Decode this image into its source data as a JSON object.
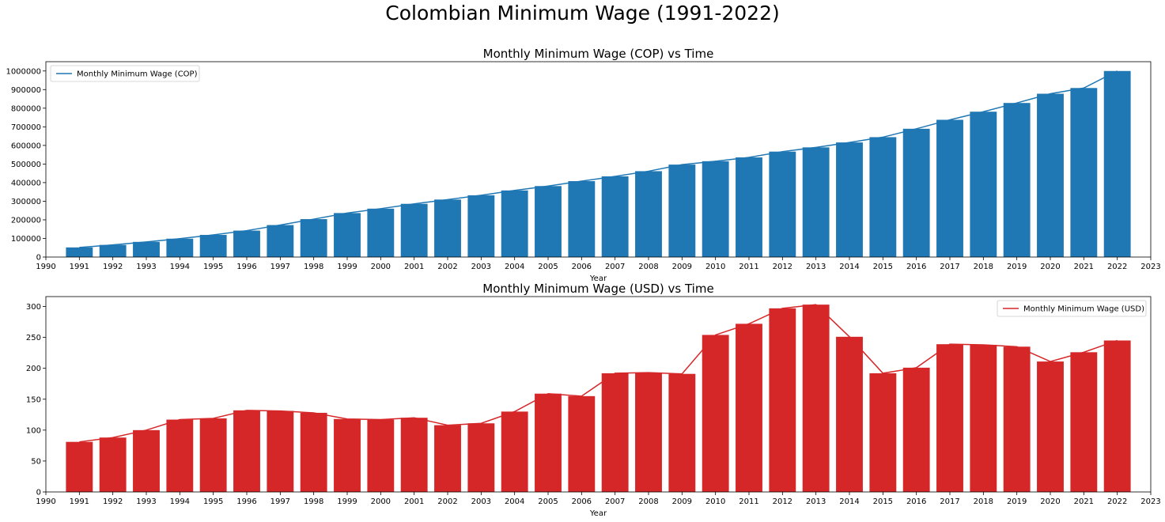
{
  "figure_title": "Colombian Minimum Wage (1991-2022)",
  "chart_data": [
    {
      "type": "bar",
      "title": "Monthly Minimum Wage (COP) vs Time",
      "xlabel": "Year",
      "ylabel": "",
      "xlim": [
        1990,
        2023
      ],
      "ylim": [
        0,
        1050000
      ],
      "x_ticks": [
        1990,
        1991,
        1992,
        1993,
        1994,
        1995,
        1996,
        1997,
        1998,
        1999,
        2000,
        2001,
        2002,
        2003,
        2004,
        2005,
        2006,
        2007,
        2008,
        2009,
        2010,
        2011,
        2012,
        2013,
        2014,
        2015,
        2016,
        2017,
        2018,
        2019,
        2020,
        2021,
        2022,
        2023
      ],
      "y_ticks": [
        0,
        100000,
        200000,
        300000,
        400000,
        500000,
        600000,
        700000,
        800000,
        900000,
        1000000
      ],
      "categories": [
        1991,
        1992,
        1993,
        1994,
        1995,
        1996,
        1997,
        1998,
        1999,
        2000,
        2001,
        2002,
        2003,
        2004,
        2005,
        2006,
        2007,
        2008,
        2009,
        2010,
        2011,
        2012,
        2013,
        2014,
        2015,
        2016,
        2017,
        2018,
        2019,
        2020,
        2021,
        2022
      ],
      "series": [
        {
          "name": "Monthly Minimum Wage (COP)",
          "kind": "bar+line",
          "color": "#1f77b4",
          "values": [
            51720,
            65190,
            81510,
            98700,
            118934,
            142125,
            172005,
            203826,
            236460,
            260100,
            286000,
            309000,
            332000,
            358000,
            381500,
            408000,
            433700,
            461500,
            496900,
            515000,
            535600,
            566700,
            589500,
            616000,
            644350,
            689455,
            737717,
            781242,
            828116,
            877803,
            908526,
            1000000
          ]
        }
      ],
      "legend": {
        "location": "top-left",
        "entries": [
          "Monthly Minimum Wage (COP)"
        ]
      },
      "grid": false
    },
    {
      "type": "bar",
      "title": "Monthly Minimum Wage (USD) vs Time",
      "xlabel": "Year",
      "ylabel": "",
      "xlim": [
        1990,
        2023
      ],
      "ylim": [
        0,
        316
      ],
      "x_ticks": [
        1990,
        1991,
        1992,
        1993,
        1994,
        1995,
        1996,
        1997,
        1998,
        1999,
        2000,
        2001,
        2002,
        2003,
        2004,
        2005,
        2006,
        2007,
        2008,
        2009,
        2010,
        2011,
        2012,
        2013,
        2014,
        2015,
        2016,
        2017,
        2018,
        2019,
        2020,
        2021,
        2022,
        2023
      ],
      "y_ticks": [
        0,
        50,
        100,
        150,
        200,
        250,
        300
      ],
      "categories": [
        1991,
        1992,
        1993,
        1994,
        1995,
        1996,
        1997,
        1998,
        1999,
        2000,
        2001,
        2002,
        2003,
        2004,
        2005,
        2006,
        2007,
        2008,
        2009,
        2010,
        2011,
        2012,
        2013,
        2014,
        2015,
        2016,
        2017,
        2018,
        2019,
        2020,
        2021,
        2022
      ],
      "series": [
        {
          "name": "Monthly Minimum Wage (USD)",
          "kind": "bar+line",
          "color": "#d62728",
          "values": [
            81,
            88,
            100,
            117,
            119,
            132,
            131,
            128,
            118,
            117,
            120,
            108,
            111,
            130,
            159,
            155,
            192,
            193,
            191,
            254,
            272,
            297,
            303,
            251,
            192,
            201,
            239,
            238,
            235,
            211,
            226,
            245
          ]
        }
      ],
      "legend": {
        "location": "top-right",
        "entries": [
          "Monthly Minimum Wage (USD)"
        ]
      },
      "grid": false
    }
  ]
}
